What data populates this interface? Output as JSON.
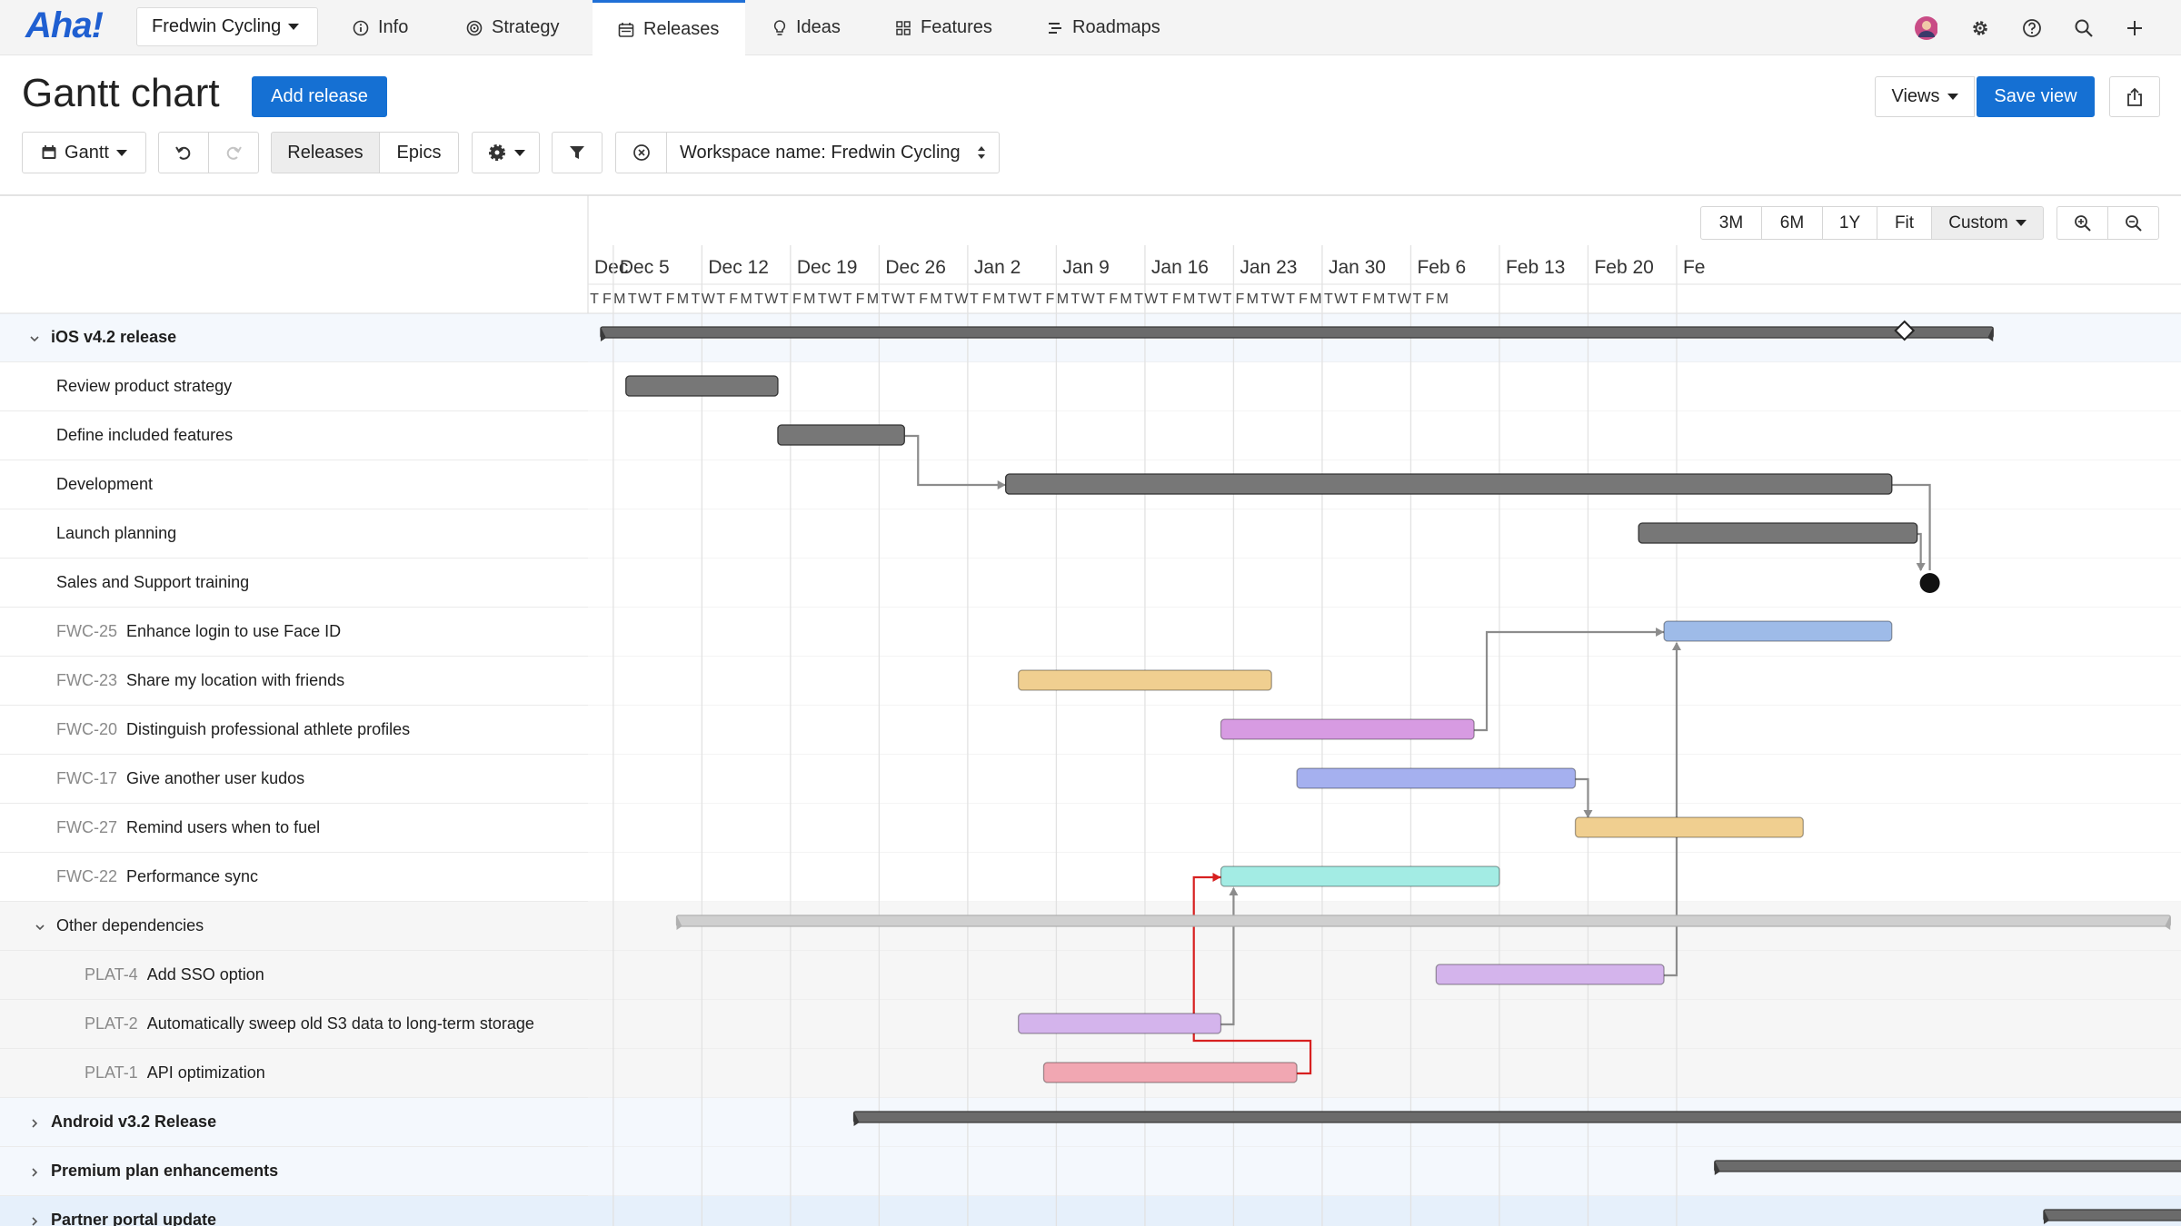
{
  "nav": {
    "logo": "Aha!",
    "workspace": "Fredwin Cycling",
    "tabs": [
      {
        "label": "Info",
        "icon": "info-icon",
        "active": false
      },
      {
        "label": "Strategy",
        "icon": "target-icon",
        "active": false
      },
      {
        "label": "Releases",
        "icon": "calendar-icon",
        "active": true
      },
      {
        "label": "Ideas",
        "icon": "lightbulb-icon",
        "active": false
      },
      {
        "label": "Features",
        "icon": "grid-icon",
        "active": false
      },
      {
        "label": "Roadmaps",
        "icon": "roadmap-icon",
        "active": false
      }
    ]
  },
  "page": {
    "title": "Gantt chart",
    "add_release": "Add release",
    "views": "Views",
    "save_view": "Save view"
  },
  "toolbar": {
    "gantt": "Gantt",
    "releases": "Releases",
    "epics": "Epics",
    "workspace_filter": "Workspace name: Fredwin Cycling"
  },
  "zoom": {
    "presets": [
      "3M",
      "6M",
      "1Y",
      "Fit"
    ],
    "custom": "Custom"
  },
  "timeline": {
    "weeks": [
      "Dec",
      "Dec 5",
      "Dec 12",
      "Dec 19",
      "Dec 26",
      "Jan 2",
      "Jan 9",
      "Jan 16",
      "Jan 23",
      "Jan 30",
      "Feb 6",
      "Feb 13",
      "Feb 20",
      "Fe"
    ],
    "day_letters": [
      "T",
      "F",
      "M",
      "T",
      "W",
      "T",
      "F",
      "M",
      "T",
      "W",
      "T",
      "F",
      "M",
      "T",
      "W",
      "T",
      "F",
      "M",
      "T",
      "W",
      "T",
      "F",
      "M",
      "T",
      "W",
      "T",
      "F",
      "M",
      "T",
      "W",
      "T",
      "F",
      "M",
      "T",
      "W",
      "T",
      "F",
      "M",
      "T",
      "W",
      "T",
      "F",
      "M",
      "T",
      "W",
      "T",
      "F",
      "M",
      "T",
      "W",
      "T",
      "F",
      "M",
      "T",
      "W",
      "T",
      "F",
      "M",
      "T",
      "W",
      "T",
      "F",
      "M",
      "T",
      "W",
      "T",
      "F",
      "M"
    ]
  },
  "rows": [
    {
      "key": "",
      "label": "iOS v4.2 release",
      "type": "release",
      "expanded": true
    },
    {
      "key": "",
      "label": "Review product strategy",
      "type": "phase"
    },
    {
      "key": "",
      "label": "Define included features",
      "type": "phase"
    },
    {
      "key": "",
      "label": "Development",
      "type": "phase"
    },
    {
      "key": "",
      "label": "Launch planning",
      "type": "phase"
    },
    {
      "key": "",
      "label": "Sales and Support training",
      "type": "milestone"
    },
    {
      "key": "FWC-25",
      "label": "Enhance login to use Face ID",
      "type": "feature"
    },
    {
      "key": "FWC-23",
      "label": "Share my location with friends",
      "type": "feature"
    },
    {
      "key": "FWC-20",
      "label": "Distinguish professional athlete profiles",
      "type": "feature"
    },
    {
      "key": "FWC-17",
      "label": "Give another user kudos",
      "type": "feature"
    },
    {
      "key": "FWC-27",
      "label": "Remind users when to fuel",
      "type": "feature"
    },
    {
      "key": "FWC-22",
      "label": "Performance sync",
      "type": "feature"
    },
    {
      "key": "",
      "label": "Other dependencies",
      "type": "group",
      "expanded": true
    },
    {
      "key": "PLAT-4",
      "label": "Add SSO option",
      "type": "dep"
    },
    {
      "key": "PLAT-2",
      "label": "Automatically sweep old S3 data to long-term storage",
      "type": "dep"
    },
    {
      "key": "PLAT-1",
      "label": "API optimization",
      "type": "dep"
    },
    {
      "key": "",
      "label": "Android v3.2 Release",
      "type": "release",
      "expanded": false
    },
    {
      "key": "",
      "label": "Premium plan enhancements",
      "type": "release",
      "expanded": false
    },
    {
      "key": "",
      "label": "Partner portal update",
      "type": "release",
      "expanded": false
    }
  ],
  "bars": [
    {
      "row": 0,
      "start": 1,
      "end": 111,
      "color": "#6b6b6b",
      "kind": "release"
    },
    {
      "row": 1,
      "start": 3,
      "end": 15,
      "color": "#777777"
    },
    {
      "row": 2,
      "start": 15,
      "end": 25,
      "color": "#777777"
    },
    {
      "row": 3,
      "start": 33,
      "end": 103,
      "color": "#777777"
    },
    {
      "row": 4,
      "start": 83,
      "end": 105,
      "color": "#777777"
    },
    {
      "row": 6,
      "start": 85,
      "end": 103,
      "color": "#9ebbe8"
    },
    {
      "row": 7,
      "start": 34,
      "end": 54,
      "color": "#f0cf90"
    },
    {
      "row": 8,
      "start": 50,
      "end": 70,
      "color": "#d79be2"
    },
    {
      "row": 9,
      "start": 56,
      "end": 78,
      "color": "#a5b0ef"
    },
    {
      "row": 10,
      "start": 78,
      "end": 96,
      "color": "#f0cf90"
    },
    {
      "row": 11,
      "start": 50,
      "end": 72,
      "color": "#a3ece4"
    },
    {
      "row": 12,
      "start": 7,
      "end": 125,
      "color": "#cfcfcf",
      "kind": "group"
    },
    {
      "row": 13,
      "start": 67,
      "end": 85,
      "color": "#d4b4ec"
    },
    {
      "row": 14,
      "start": 34,
      "end": 50,
      "color": "#d4b4ec"
    },
    {
      "row": 15,
      "start": 36,
      "end": 56,
      "color": "#f1a7b2"
    },
    {
      "row": 16,
      "start": 21,
      "end": 160,
      "color": "#6b6b6b",
      "kind": "release"
    },
    {
      "row": 17,
      "start": 89,
      "end": 160,
      "color": "#6b6b6b",
      "kind": "release"
    },
    {
      "row": 18,
      "start": 115,
      "end": 160,
      "color": "#6b6b6b",
      "kind": "release"
    }
  ],
  "markers": {
    "release_diamond": {
      "row": 0,
      "day": 104
    },
    "milestone_dot": {
      "row": 5,
      "day": 106
    }
  }
}
